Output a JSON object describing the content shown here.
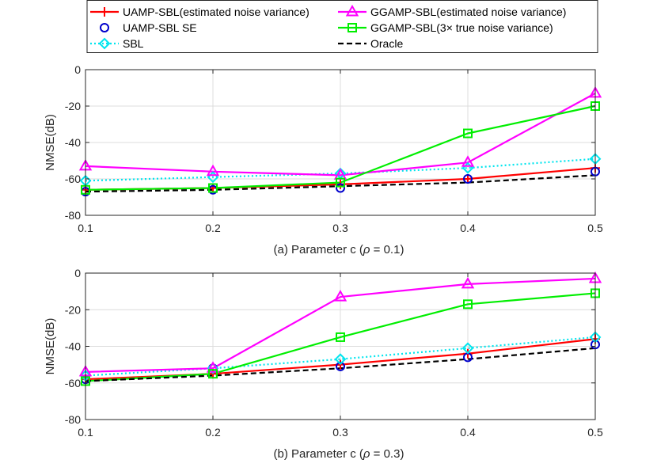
{
  "legend": {
    "items": [
      {
        "label": "UAMP-SBL(estimated noise variance)",
        "series": "UAMP-SBL"
      },
      {
        "label": "GGAMP-SBL(estimated noise variance)",
        "series": "GGAMP-SBL-est"
      },
      {
        "label": "UAMP-SBL SE",
        "series": "UAMP-SBL SE"
      },
      {
        "label": "GGAMP-SBL(3× true noise variance)",
        "series": "GGAMP-SBL-3x"
      },
      {
        "label": "SBL",
        "series": "SBL"
      },
      {
        "label": "Oracle",
        "series": "Oracle"
      }
    ]
  },
  "styles": {
    "UAMP-SBL": {
      "color": "#ff0000",
      "marker": "plus",
      "dash": "solid"
    },
    "UAMP-SBL SE": {
      "color": "#0000cc",
      "marker": "circle",
      "dash": "none"
    },
    "SBL": {
      "color": "#00e5ee",
      "marker": "diamond",
      "dash": "dotted"
    },
    "GGAMP-SBL-est": {
      "color": "#ff00ff",
      "marker": "triangle",
      "dash": "solid"
    },
    "GGAMP-SBL-3x": {
      "color": "#00ee00",
      "marker": "square",
      "dash": "solid"
    },
    "Oracle": {
      "color": "#000000",
      "marker": "none",
      "dash": "dashed"
    }
  },
  "chart_data": [
    {
      "type": "line",
      "title": "",
      "xlabel_prefix": "(a) Parameter c (",
      "rho_symbol": "ρ",
      "xlabel_suffix": " = 0.1)",
      "ylabel": "NMSE(dB)",
      "x": [
        0.1,
        0.2,
        0.3,
        0.4,
        0.5
      ],
      "xticks": [
        "0.1",
        "0.2",
        "0.3",
        "0.4",
        "0.5"
      ],
      "ylim": [
        -80,
        0
      ],
      "yticks": [
        0,
        -20,
        -40,
        -60,
        -80
      ],
      "ytick_labels": [
        "0",
        "-20",
        "-40",
        "-60",
        "-80"
      ],
      "grid": true,
      "series": [
        {
          "name": "UAMP-SBL",
          "values": [
            -66,
            -65,
            -63,
            -60,
            -54
          ]
        },
        {
          "name": "UAMP-SBL SE",
          "values": [
            -67,
            -66,
            -65,
            -60,
            -56
          ]
        },
        {
          "name": "SBL",
          "values": [
            -61,
            -59,
            -57,
            -54,
            -49
          ]
        },
        {
          "name": "GGAMP-SBL-est",
          "values": [
            -53,
            -56,
            -58,
            -51,
            -13
          ]
        },
        {
          "name": "GGAMP-SBL-3x",
          "values": [
            -66,
            -65,
            -62,
            -35,
            -20
          ]
        },
        {
          "name": "Oracle",
          "values": [
            -67,
            -66,
            -64,
            -62,
            -58
          ]
        }
      ]
    },
    {
      "type": "line",
      "title": "",
      "xlabel_prefix": "(b) Parameter c (",
      "rho_symbol": "ρ",
      "xlabel_suffix": " = 0.3)",
      "ylabel": "NMSE(dB)",
      "x": [
        0.1,
        0.2,
        0.3,
        0.4,
        0.5
      ],
      "xticks": [
        "0.1",
        "0.2",
        "0.3",
        "0.4",
        "0.5"
      ],
      "ylim": [
        -80,
        0
      ],
      "yticks": [
        0,
        -20,
        -40,
        -60,
        -80
      ],
      "ytick_labels": [
        "0",
        "-20",
        "-40",
        "-60",
        "-80"
      ],
      "grid": true,
      "series": [
        {
          "name": "UAMP-SBL",
          "values": [
            -58,
            -55,
            -50,
            -44,
            -36
          ]
        },
        {
          "name": "UAMP-SBL SE",
          "values": [
            -58,
            -52,
            -51,
            -46,
            -39
          ]
        },
        {
          "name": "SBL",
          "values": [
            -56,
            -52,
            -47,
            -41,
            -35
          ]
        },
        {
          "name": "GGAMP-SBL-est",
          "values": [
            -54,
            -52,
            -13,
            -6,
            -3
          ]
        },
        {
          "name": "GGAMP-SBL-3x",
          "values": [
            -59,
            -55,
            -35,
            -17,
            -11
          ]
        },
        {
          "name": "Oracle",
          "values": [
            -59,
            -56,
            -52,
            -47,
            -41
          ]
        }
      ]
    }
  ]
}
